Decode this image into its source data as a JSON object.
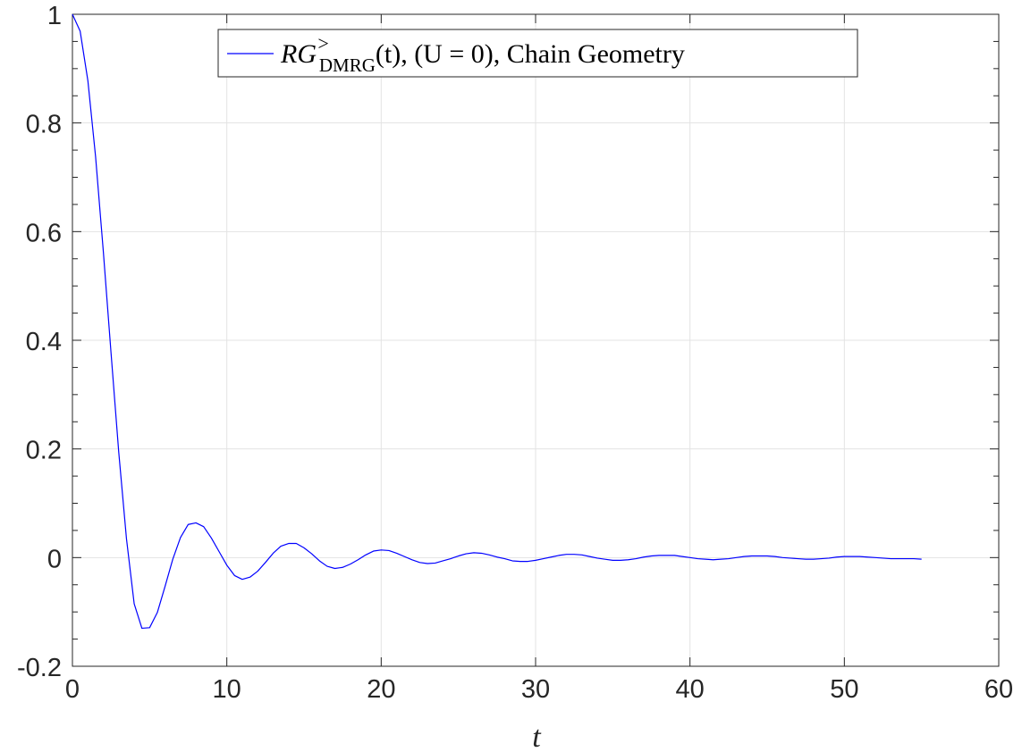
{
  "chart_data": {
    "type": "line",
    "title": "",
    "xlabel": "t",
    "ylabel": "",
    "xlim": [
      0,
      60
    ],
    "ylim": [
      -0.2,
      1
    ],
    "xticks": [
      0,
      10,
      20,
      30,
      40,
      50,
      60
    ],
    "xtick_labels": [
      "0",
      "10",
      "20",
      "30",
      "40",
      "50",
      "60"
    ],
    "yticks": [
      -0.2,
      0,
      0.2,
      0.4,
      0.6,
      0.8,
      1
    ],
    "ytick_labels": [
      "-0.2",
      "0",
      "0.2",
      "0.4",
      "0.6",
      "0.8",
      "1"
    ],
    "grid": true,
    "legend_position": "top-center",
    "series": [
      {
        "name": "RG>DMRG(t), (U = 0), Chain Geometry",
        "legend_main": "RG",
        "legend_super": ">",
        "legend_sub": "DMRG",
        "legend_rest": "(t), (U = 0), Chain Geometry",
        "color": "#0000ff",
        "x": [
          0,
          0.5,
          1,
          1.5,
          2,
          2.5,
          3,
          3.5,
          4,
          4.5,
          5,
          5.5,
          6,
          6.5,
          7,
          7.5,
          8,
          8.5,
          9,
          9.5,
          10,
          10.5,
          11,
          11.5,
          12,
          12.5,
          13,
          13.5,
          14,
          14.5,
          15,
          15.5,
          16,
          16.5,
          17,
          17.5,
          18,
          18.5,
          19,
          19.5,
          20,
          20.5,
          21,
          21.5,
          22,
          22.5,
          23,
          23.5,
          24,
          24.5,
          25,
          25.5,
          26,
          26.5,
          27,
          27.5,
          28,
          28.5,
          29,
          29.5,
          30,
          30.5,
          31,
          31.5,
          32,
          32.5,
          33,
          33.5,
          34,
          34.5,
          35,
          35.5,
          36,
          36.5,
          37,
          37.5,
          38,
          38.5,
          39,
          39.5,
          40,
          40.5,
          41,
          41.5,
          42,
          42.5,
          43,
          43.5,
          44,
          44.5,
          45,
          45.5,
          46,
          46.5,
          47,
          47.5,
          48,
          48.5,
          49,
          49.5,
          50,
          50.5,
          51,
          51.5,
          52,
          52.5,
          53,
          53.5,
          54,
          54.5,
          55
        ],
        "y": [
          1,
          0.969,
          0.878,
          0.738,
          0.564,
          0.377,
          0.194,
          0.035,
          -0.085,
          -0.13,
          -0.129,
          -0.101,
          -0.053,
          -0.003,
          0.037,
          0.061,
          0.064,
          0.057,
          0.036,
          0.011,
          -0.014,
          -0.033,
          -0.04,
          -0.036,
          -0.025,
          -0.009,
          0.008,
          0.021,
          0.026,
          0.026,
          0.018,
          0.007,
          -0.006,
          -0.016,
          -0.02,
          -0.018,
          -0.012,
          -0.004,
          0.005,
          0.012,
          0.014,
          0.013,
          0.008,
          0.002,
          -0.004,
          -0.009,
          -0.011,
          -0.01,
          -0.006,
          -0.002,
          0.003,
          0.007,
          0.009,
          0.008,
          0.005,
          0.001,
          -0.002,
          -0.006,
          -0.007,
          -0.007,
          -0.005,
          -0.002,
          0.001,
          0.004,
          0.006,
          0.006,
          0.005,
          0.002,
          -0.001,
          -0.003,
          -0.005,
          -0.005,
          -0.004,
          -0.002,
          0.001,
          0.003,
          0.004,
          0.004,
          0.004,
          0.002,
          0.0,
          -0.002,
          -0.003,
          -0.004,
          -0.003,
          -0.002,
          0.0,
          0.002,
          0.003,
          0.003,
          0.003,
          0.002,
          0.0,
          -0.001,
          -0.002,
          -0.003,
          -0.003,
          -0.002,
          -0.001,
          0.001,
          0.002,
          0.002,
          0.002,
          0.001,
          0.0,
          -0.001,
          -0.002,
          -0.002,
          -0.002,
          -0.002,
          -0.003
        ]
      }
    ]
  }
}
